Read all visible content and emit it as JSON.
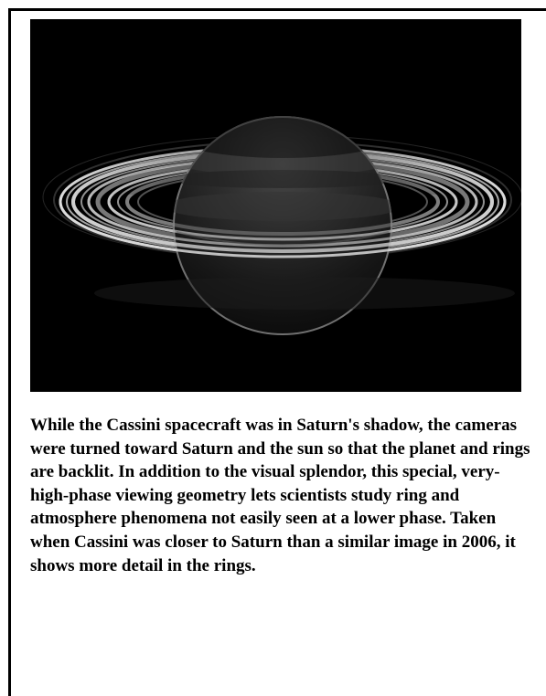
{
  "image": {
    "subject": "saturn-backlit-rings-photo"
  },
  "caption": {
    "text": "While the Cassini spacecraft was in Saturn's shadow, the cameras were turned toward Saturn and the sun so that the planet and rings are backlit. In addition to the visual splendor, this special, very-high-phase viewing geometry lets scientists study ring and atmosphere phenomena not easily seen at a lower phase. Taken when Cassini was closer to Saturn than a similar image in 2006, it shows more detail in the rings."
  },
  "colors": {
    "frame": "#000000",
    "photo_background": "#000000",
    "caption_text": "#000000"
  }
}
